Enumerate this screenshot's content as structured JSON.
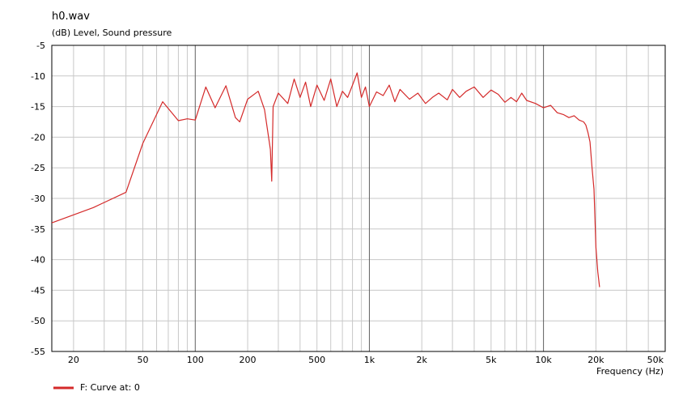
{
  "chart_data": {
    "type": "line",
    "title": "h0.wav",
    "ylabel": "(dB)  Level, Sound pressure",
    "xlabel": "Frequency  (Hz)",
    "x_scale": "log",
    "xlim": [
      15,
      50000
    ],
    "ylim": [
      -55,
      -5
    ],
    "grid": true,
    "y_ticks": [
      -5,
      -10,
      -15,
      -20,
      -25,
      -30,
      -35,
      -40,
      -45,
      -50,
      -55
    ],
    "y_tick_labels": [
      "-5",
      "-10",
      "-15",
      "-20",
      "-25",
      "-30",
      "-35",
      "-40",
      "-45",
      "-50",
      "-55"
    ],
    "x_ticks": [
      20,
      50,
      100,
      200,
      500,
      1000,
      2000,
      5000,
      10000,
      20000,
      50000
    ],
    "x_tick_labels": [
      "20",
      "50",
      "100",
      "200",
      "500",
      "1k",
      "2k",
      "5k",
      "10k",
      "20k",
      "50k"
    ],
    "legend_position": "bottom-left",
    "series": [
      {
        "name": "F: Curve at: 0",
        "color": "#d42a2a",
        "x": [
          15,
          26,
          40,
          50,
          65,
          80,
          90,
          100,
          115,
          130,
          150,
          170,
          180,
          200,
          230,
          250,
          270,
          275,
          280,
          300,
          340,
          370,
          400,
          430,
          460,
          500,
          550,
          600,
          650,
          700,
          750,
          800,
          850,
          900,
          950,
          1000,
          1100,
          1200,
          1300,
          1400,
          1500,
          1700,
          1900,
          2100,
          2300,
          2500,
          2800,
          3000,
          3300,
          3600,
          4000,
          4500,
          5000,
          5500,
          6000,
          6500,
          7000,
          7500,
          8000,
          9000,
          10000,
          11000,
          12000,
          13000,
          14000,
          15000,
          16000,
          17000,
          17500,
          18000,
          18500,
          19000,
          19500,
          20000,
          20500,
          21000
        ],
        "y": [
          -34,
          -31.5,
          -29,
          -21,
          -14.2,
          -17.3,
          -17.0,
          -17.2,
          -11.8,
          -15.2,
          -11.6,
          -16.8,
          -17.5,
          -13.8,
          -12.5,
          -15.5,
          -22,
          -27.2,
          -15,
          -12.8,
          -14.5,
          -10.5,
          -13.5,
          -11,
          -15,
          -11.5,
          -14,
          -10.5,
          -15,
          -12.5,
          -13.5,
          -11.5,
          -9.5,
          -13.5,
          -11.8,
          -15,
          -12.6,
          -13.2,
          -11.5,
          -14.2,
          -12.2,
          -13.8,
          -12.8,
          -14.5,
          -13.5,
          -12.8,
          -13.9,
          -12.2,
          -13.5,
          -12.5,
          -11.8,
          -13.5,
          -12.3,
          -13.0,
          -14.3,
          -13.5,
          -14.2,
          -12.8,
          -14.0,
          -14.5,
          -15.2,
          -14.8,
          -16.0,
          -16.3,
          -16.8,
          -16.5,
          -17.2,
          -17.5,
          -18.0,
          -19.2,
          -20.8,
          -25.0,
          -28.5,
          -38.0,
          -42.0,
          -44.5
        ]
      }
    ]
  },
  "legend": {
    "color": "#d42a2a",
    "label": "F: Curve at: 0"
  },
  "colors": {
    "grid": "#c8c8c8",
    "major_grid": "#606060",
    "axis": "#000000"
  }
}
